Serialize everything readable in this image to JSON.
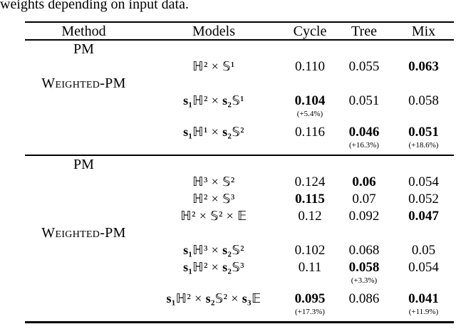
{
  "caption": "weights depending on input data.",
  "table": {
    "headers": [
      "Method",
      "Models",
      "Cycle",
      "Tree",
      "Mix"
    ],
    "sections": [
      {
        "groups": [
          {
            "method": "PM",
            "smallcaps": false,
            "rows": [
              {
                "model": "ℍ² × 𝕊¹",
                "values": [
                  "0.110",
                  "0.055",
                  "0.063"
                ],
                "bold": [
                  false,
                  false,
                  true
                ],
                "subs": [
                  "",
                  "",
                  ""
                ]
              }
            ]
          },
          {
            "method": "Weighted-PM",
            "smallcaps": true,
            "rows": [
              {
                "model": "s₁ℍ² × s₂𝕊¹",
                "values": [
                  "0.104",
                  "0.051",
                  "0.058"
                ],
                "bold": [
                  true,
                  false,
                  false
                ],
                "subs": [
                  "(+5.4%)",
                  "",
                  ""
                ]
              },
              {
                "model": "s₁ℍ¹ × s₂𝕊²",
                "values": [
                  "0.116",
                  "0.046",
                  "0.051"
                ],
                "bold": [
                  false,
                  true,
                  true
                ],
                "subs": [
                  "",
                  "(+16.3%)",
                  "(+18.6%)"
                ]
              }
            ]
          }
        ]
      },
      {
        "groups": [
          {
            "method": "PM",
            "smallcaps": false,
            "rows": [
              {
                "model": "ℍ³ × 𝕊²",
                "values": [
                  "0.124",
                  "0.06",
                  "0.054"
                ],
                "bold": [
                  false,
                  true,
                  false
                ],
                "subs": [
                  "",
                  "",
                  ""
                ]
              },
              {
                "model": "ℍ² × 𝕊³",
                "values": [
                  "0.115",
                  "0.07",
                  "0.052"
                ],
                "bold": [
                  true,
                  false,
                  false
                ],
                "subs": [
                  "",
                  "",
                  ""
                ]
              },
              {
                "model": "ℍ² × 𝕊² × 𝔼",
                "values": [
                  "0.12",
                  "0.092",
                  "0.047"
                ],
                "bold": [
                  false,
                  false,
                  true
                ],
                "subs": [
                  "",
                  "",
                  ""
                ]
              }
            ]
          },
          {
            "method": "Weighted-PM",
            "smallcaps": true,
            "rows": [
              {
                "model": "s₁ℍ³ × s₂𝕊²",
                "values": [
                  "0.102",
                  "0.068",
                  "0.05"
                ],
                "bold": [
                  false,
                  false,
                  false
                ],
                "subs": [
                  "",
                  "",
                  ""
                ]
              },
              {
                "model": "s₁ℍ² × s₂𝕊³",
                "values": [
                  "0.11",
                  "0.058",
                  "0.054"
                ],
                "bold": [
                  false,
                  true,
                  false
                ],
                "subs": [
                  "",
                  "(+3.3%)",
                  ""
                ]
              },
              {
                "model": "s₁ℍ² × s₂𝕊² × s₃𝔼",
                "values": [
                  "0.095",
                  "0.086",
                  "0.041"
                ],
                "bold": [
                  true,
                  false,
                  true
                ],
                "subs": [
                  "(+17.3%)",
                  "",
                  "(+11.9%)"
                ]
              }
            ]
          }
        ]
      }
    ]
  }
}
